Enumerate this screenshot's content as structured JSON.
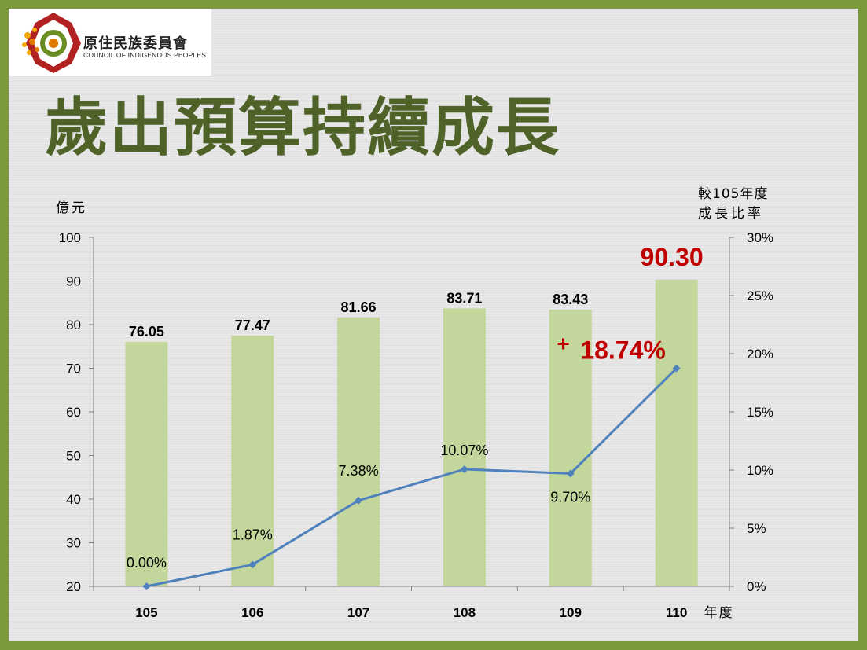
{
  "org": {
    "name_cn": "原住民族委員會",
    "name_en": "COUNCIL OF INDIGENOUS PEOPLES"
  },
  "page": {
    "title": "歲出預算持續成長"
  },
  "colors": {
    "frame": "#7a9a3c",
    "title": "#4f6228",
    "bar": "#c3d69b",
    "line": "#4f81bd",
    "highlight": "#c00000"
  },
  "chart_data": {
    "type": "bar",
    "categories": [
      "105",
      "106",
      "107",
      "108",
      "109",
      "110"
    ],
    "x_unit_label": "年度",
    "left_axis": {
      "label": "億元",
      "ylim": [
        20,
        100
      ],
      "ticks": [
        "20",
        "30",
        "40",
        "50",
        "60",
        "70",
        "80",
        "90",
        "100"
      ]
    },
    "right_axis": {
      "label_line1": "較105年度",
      "label_line2": "成長比率",
      "ylim": [
        0,
        30
      ],
      "ticks": [
        "0%",
        "5%",
        "10%",
        "15%",
        "20%",
        "25%",
        "30%"
      ]
    },
    "series": [
      {
        "type": "bar",
        "axis": "left",
        "values": [
          76.05,
          77.47,
          81.66,
          83.71,
          83.43,
          90.3
        ],
        "labels": [
          "76.05",
          "77.47",
          "81.66",
          "83.71",
          "83.43",
          "90.30"
        ]
      },
      {
        "type": "line",
        "axis": "right",
        "values": [
          0.0,
          1.87,
          7.38,
          10.07,
          9.7,
          18.74
        ],
        "labels": [
          "0.00%",
          "1.87%",
          "7.38%",
          "10.07%",
          "9.70%",
          "18.74%"
        ]
      }
    ],
    "highlight": {
      "index": 5,
      "prefix": "+"
    },
    "grid": false,
    "legend": "none"
  }
}
